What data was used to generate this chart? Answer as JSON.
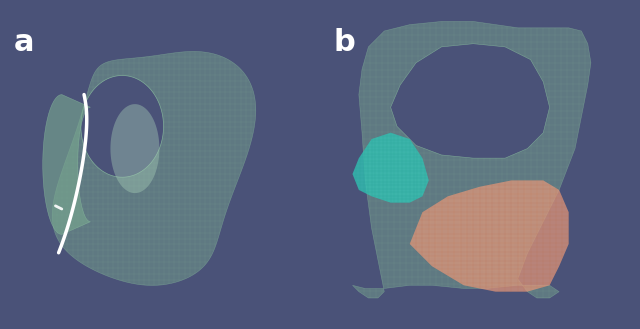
{
  "background_color": "#4a5278",
  "label_a": "a",
  "label_b": "b",
  "label_color": "white",
  "label_fontsize": 22,
  "label_fontweight": "bold",
  "mesh_color_base": "#7aaa90",
  "mesh_edge_color": "#8bbfa0",
  "mesh_line_color": "#9ac8a8",
  "cyan_color": "#30c8b8",
  "peach_color": "#e8997a",
  "white_curve_color": "white",
  "figsize": [
    6.4,
    3.29
  ],
  "dpi": 100
}
